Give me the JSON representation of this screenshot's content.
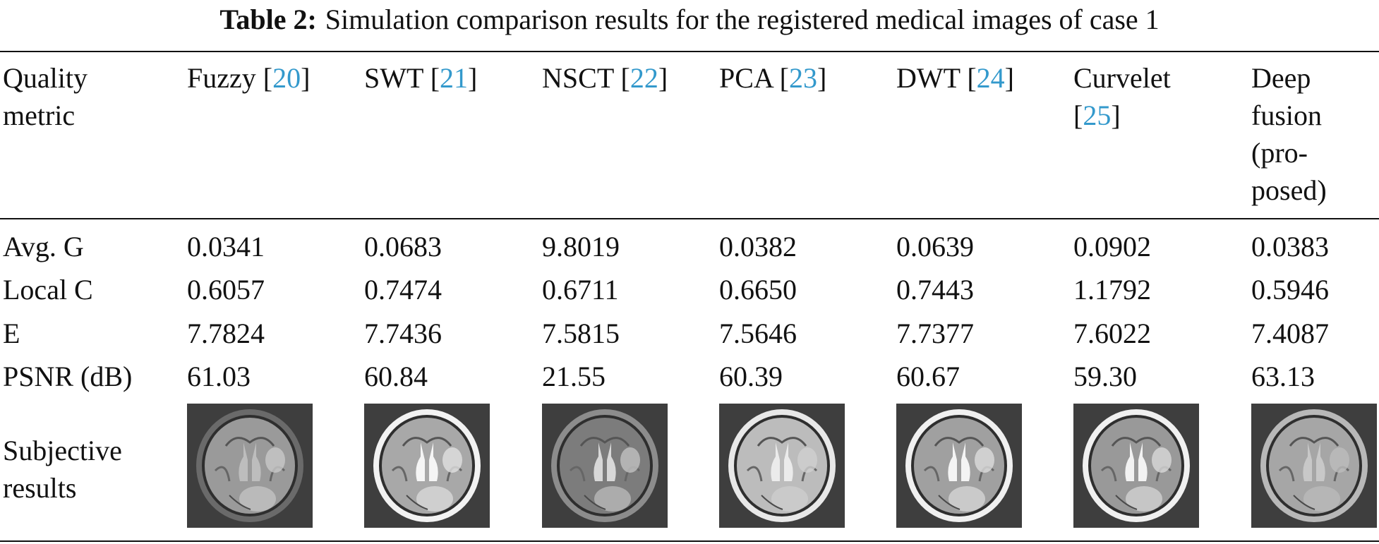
{
  "caption": {
    "label": "Table 2:",
    "text": "Simulation comparison results for the registered medical images of case 1"
  },
  "header": {
    "metric_line1": "Quality",
    "metric_line2": "metric",
    "methods": [
      {
        "name": "Fuzzy [",
        "ref": "20",
        "close": "]"
      },
      {
        "name": "SWT [",
        "ref": "21",
        "close": "]"
      },
      {
        "name": "NSCT [",
        "ref": "22",
        "close": "]"
      },
      {
        "name": "PCA [",
        "ref": "23",
        "close": "]"
      },
      {
        "name": "DWT [",
        "ref": "24",
        "close": "]"
      },
      {
        "line1": "Curvelet",
        "open": "[",
        "ref": "25",
        "close": "]"
      },
      {
        "line1": "Deep",
        "line2": "fusion",
        "line3": "(pro-",
        "line4": "posed)"
      }
    ]
  },
  "rows": [
    {
      "metric": "Avg. G",
      "values": [
        "0.0341",
        "0.0683",
        "9.8019",
        "0.0382",
        "0.0639",
        "0.0902",
        "0.0383"
      ]
    },
    {
      "metric": "Local C",
      "values": [
        "0.6057",
        "0.7474",
        "0.6711",
        "0.6650",
        "0.7443",
        "1.1792",
        "0.5946"
      ]
    },
    {
      "metric": "E",
      "values": [
        "7.7824",
        "7.7436",
        "7.5815",
        "7.5646",
        "7.7377",
        "7.6022",
        "7.4087"
      ]
    },
    {
      "metric": "PSNR (dB)",
      "values": [
        "61.03",
        "60.84",
        "21.55",
        "60.39",
        "60.67",
        "59.30",
        "63.13"
      ]
    }
  ],
  "subjective": {
    "line1": "Subjective",
    "line2": "results"
  },
  "colors": {
    "reference": "#3399cc",
    "text": "#111111"
  }
}
